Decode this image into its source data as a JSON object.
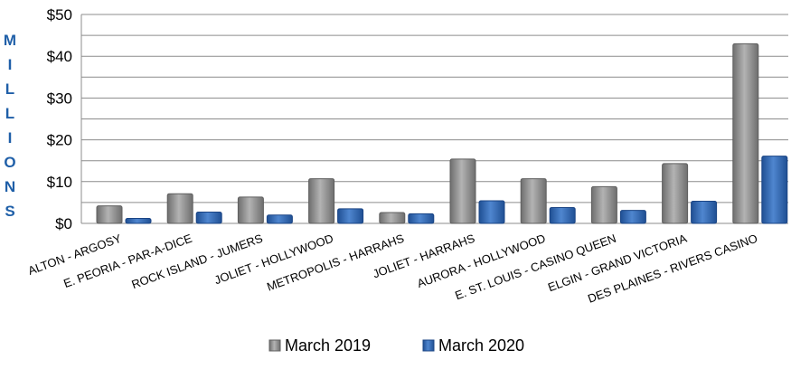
{
  "chart_data": {
    "type": "bar",
    "title": "",
    "ylabel": "MILLIONS",
    "xlabel": "",
    "ylim": [
      0,
      50
    ],
    "yticks": [
      "$0",
      "$10",
      "$20",
      "$30",
      "$40",
      "$50"
    ],
    "ytick_values": [
      0,
      10,
      20,
      30,
      40,
      50
    ],
    "grid": true,
    "legend_position": "bottom",
    "categories": [
      "ALTON - ARGOSY",
      "E. PEORIA - PAR-A-DICE",
      "ROCK ISLAND - JUMERS",
      "JOLIET - HOLLYWOOD",
      "METROPOLIS - HARRAHS",
      "JOLIET - HARRAHS",
      "AURORA - HOLLYWOOD",
      "E. ST. LOUIS - CASINO QUEEN",
      "ELGIN - GRAND VICTORIA",
      "DES PLAINES - RIVERS CASINO"
    ],
    "series": [
      {
        "name": "March 2019",
        "color": "#8c8c8c",
        "values": [
          4.2,
          7.1,
          6.3,
          10.7,
          2.6,
          15.4,
          10.7,
          8.8,
          14.3,
          43.0
        ]
      },
      {
        "name": "March 2020",
        "color": "#3a6fb8",
        "values": [
          1.2,
          2.7,
          2.0,
          3.5,
          2.3,
          5.4,
          3.8,
          3.1,
          5.3,
          16.1
        ]
      }
    ]
  }
}
